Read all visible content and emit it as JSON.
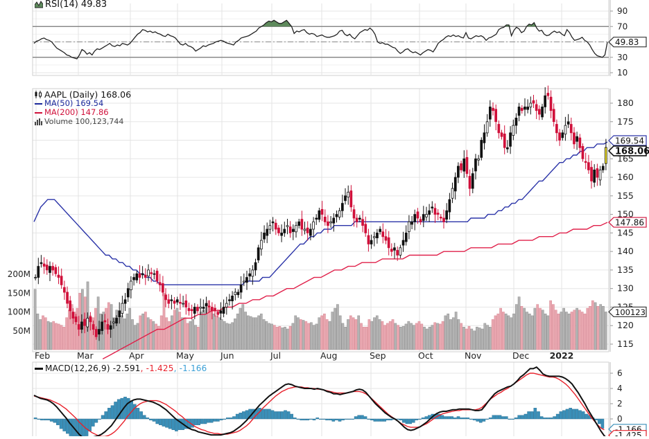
{
  "chart_data": [
    {
      "type": "line",
      "panel": "rsi",
      "title": "RSI(14) 49.83",
      "indicator_label": "RSI(14)",
      "current_value": "49.83",
      "yticks": [
        90,
        70,
        30,
        10
      ],
      "ylim": [
        0,
        100
      ],
      "overbought": 70,
      "oversold": 30,
      "midline": 50,
      "colors": {
        "line": "#222222",
        "overbought_fill": "#5e8a5c",
        "bands": "#666666"
      },
      "values": [
        48,
        51,
        52,
        54,
        55,
        53,
        52,
        50,
        46,
        42,
        40,
        38,
        36,
        33,
        32,
        30,
        29,
        28,
        33,
        40,
        38,
        34,
        36,
        33,
        38,
        41,
        40,
        42,
        44,
        46,
        48,
        45,
        44,
        46,
        45,
        48,
        47,
        46,
        48,
        52,
        56,
        60,
        62,
        66,
        65,
        63,
        64,
        62,
        63,
        61,
        60,
        58,
        57,
        60,
        58,
        57,
        55,
        51,
        47,
        46,
        48,
        45,
        44,
        42,
        38,
        40,
        42,
        45,
        44,
        46,
        47,
        48,
        50,
        51,
        52,
        51,
        49,
        48,
        47,
        46,
        50,
        52,
        55,
        56,
        57,
        58,
        60,
        62,
        64,
        68,
        70,
        72,
        75,
        77,
        76,
        78,
        76,
        74,
        74,
        76,
        78,
        74,
        70,
        61,
        64,
        63,
        65,
        66,
        62,
        60,
        61,
        60,
        57,
        58,
        59,
        57,
        56,
        56,
        57,
        58,
        60,
        64,
        65,
        60,
        58,
        60,
        56,
        54,
        58,
        62,
        64,
        66,
        65,
        68,
        65,
        60,
        50,
        48,
        49,
        47,
        47,
        45,
        43,
        42,
        38,
        35,
        37,
        40,
        41,
        38,
        36,
        37,
        35,
        33,
        36,
        38,
        40,
        39,
        37,
        42,
        48,
        51,
        53,
        56,
        58,
        57,
        59,
        57,
        58,
        56,
        55,
        62,
        55,
        54,
        56,
        58,
        57,
        58,
        56,
        52,
        55,
        56,
        58,
        60,
        66,
        68,
        69,
        72,
        72,
        58,
        65,
        69,
        67,
        62,
        64,
        70,
        73,
        72,
        75,
        68,
        64,
        65,
        60,
        58,
        59,
        62,
        64,
        62,
        63,
        60,
        58,
        66,
        62,
        56,
        52,
        53,
        54,
        56,
        52,
        50,
        46,
        40,
        35,
        32,
        31,
        30,
        33,
        49.83
      ]
    },
    {
      "type": "candlestick",
      "panel": "price",
      "title": "AAPL (Daily) 168.06",
      "symbol": "AAPL",
      "period": "Daily",
      "last_price": "168.06",
      "ylim": [
        113,
        183
      ],
      "yticks": [
        180,
        175,
        170,
        165,
        160,
        155,
        150,
        145,
        140,
        135,
        130,
        125,
        120,
        115
      ],
      "xticks": [
        "Feb",
        "Mar",
        "Apr",
        "May",
        "Jun",
        "Jul",
        "Aug",
        "Sep",
        "Oct",
        "Nov",
        "Dec",
        "2022"
      ],
      "close": [
        133,
        136,
        137,
        136,
        135,
        136,
        135,
        134,
        133,
        131,
        129,
        126,
        124,
        122,
        121,
        119,
        121,
        120,
        122,
        121,
        119,
        117,
        119,
        121,
        121,
        119,
        120,
        121,
        122,
        124,
        126,
        127,
        130,
        132,
        133,
        134,
        133,
        134,
        133,
        135,
        134,
        134,
        132,
        131,
        129,
        127,
        126,
        127,
        126,
        127,
        126,
        126,
        125,
        124,
        124,
        125,
        124,
        125,
        125,
        126,
        125,
        124,
        124,
        123,
        124,
        125,
        126,
        127,
        128,
        129,
        129,
        131,
        132,
        133,
        134,
        135,
        137,
        141,
        143,
        145,
        146,
        147,
        148,
        146,
        145,
        145,
        146,
        147,
        145,
        146,
        147,
        148,
        146,
        146,
        145,
        146,
        148,
        149,
        151,
        150,
        148,
        147,
        148,
        149,
        150,
        151,
        153,
        155,
        156,
        152,
        149,
        148,
        149,
        147,
        145,
        142,
        143,
        144,
        145,
        146,
        144,
        143,
        141,
        140,
        141,
        139,
        141,
        143,
        145,
        148,
        148,
        150,
        149,
        148,
        150,
        150,
        151,
        152,
        150,
        150,
        149,
        148,
        151,
        154,
        157,
        160,
        163,
        162,
        165,
        161,
        157,
        161,
        165,
        165,
        170,
        172,
        175,
        179,
        178,
        175,
        172,
        171,
        168,
        168,
        172,
        174,
        176,
        179,
        178,
        179,
        179,
        180,
        180,
        178,
        177,
        179,
        182,
        182,
        178,
        175,
        172,
        170,
        172,
        174,
        175,
        172,
        169,
        171,
        168,
        165,
        164,
        162,
        159,
        162,
        160,
        162,
        163,
        168.06
      ],
      "ma50": [
        148,
        150,
        152,
        153,
        154,
        154,
        154,
        153,
        152,
        151,
        150,
        149,
        148,
        147,
        146,
        145,
        144,
        143,
        142,
        141,
        140,
        139,
        139,
        138,
        138,
        137,
        137,
        136,
        136,
        135,
        135,
        134,
        134,
        133,
        133,
        132,
        132,
        131,
        131,
        131,
        131,
        131,
        131,
        131,
        131,
        131,
        131,
        131,
        131,
        131,
        131,
        131,
        131,
        131,
        131,
        131,
        131,
        131,
        131,
        131,
        131,
        131,
        132,
        132,
        132,
        132,
        132,
        133,
        133,
        133,
        134,
        135,
        136,
        137,
        138,
        139,
        140,
        141,
        142,
        142,
        143,
        144,
        144,
        145,
        145,
        146,
        146,
        146,
        147,
        147,
        147,
        147,
        147,
        147,
        148,
        148,
        148,
        148,
        148,
        148,
        148,
        148,
        148,
        148,
        148,
        148,
        148,
        148,
        148,
        148,
        148,
        148,
        148,
        148,
        148,
        148,
        148,
        148,
        148,
        148,
        148,
        148,
        148,
        148,
        148,
        148,
        148,
        148,
        149,
        149,
        149,
        149,
        149,
        150,
        150,
        150,
        151,
        151,
        152,
        152,
        153,
        153,
        154,
        154,
        155,
        156,
        157,
        158,
        159,
        159,
        160,
        161,
        162,
        163,
        164,
        164,
        165,
        165,
        166,
        166,
        167,
        167,
        168,
        168,
        168,
        169,
        169,
        169,
        169.54
      ],
      "ma200": [
        111,
        112,
        113,
        114,
        115,
        116,
        117,
        118,
        119,
        119,
        120,
        121,
        122,
        122,
        123,
        123,
        124,
        124,
        125,
        125,
        126,
        126,
        127,
        127,
        128,
        128,
        129,
        130,
        130,
        131,
        132,
        133,
        133,
        134,
        135,
        135,
        136,
        136,
        137,
        137,
        137,
        138,
        138,
        138,
        138,
        139,
        139,
        139,
        139,
        139,
        140,
        140,
        140,
        140,
        141,
        141,
        141,
        141,
        142,
        142,
        142,
        143,
        143,
        143,
        144,
        144,
        144,
        145,
        145,
        146,
        146,
        146,
        147,
        147,
        147.86
      ],
      "volume": [
        160,
        95,
        80,
        90,
        85,
        75,
        72,
        75,
        70,
        68,
        65,
        60,
        85,
        105,
        120,
        100,
        110,
        150,
        160,
        140,
        180,
        90,
        85,
        110,
        140,
        95,
        100,
        110,
        125,
        120,
        85,
        105,
        85,
        90,
        82,
        95,
        110,
        80,
        65,
        70,
        90,
        95,
        100,
        85,
        80,
        75,
        68,
        62,
        90,
        150,
        85,
        75,
        90,
        105,
        110,
        100,
        85,
        85,
        70,
        75,
        80,
        65,
        60,
        100,
        105,
        120,
        130,
        110,
        95,
        90,
        85,
        80,
        75,
        70,
        68,
        72,
        82,
        95,
        110,
        120,
        100,
        90,
        88,
        85,
        85,
        90,
        95,
        80,
        75,
        70,
        68,
        65,
        60,
        62,
        58,
        60,
        55,
        62,
        70,
        90,
        85,
        80,
        78,
        75,
        70,
        72,
        65,
        68,
        85,
        90,
        95,
        80,
        75,
        100,
        110,
        120,
        90,
        70,
        60,
        80,
        90,
        85,
        80,
        90,
        70,
        60,
        60,
        80,
        75,
        85,
        90,
        80,
        75,
        65,
        70,
        75,
        80,
        70,
        65,
        60,
        62,
        68,
        75,
        70,
        65,
        70,
        75,
        68,
        60,
        55,
        60,
        65,
        72,
        70,
        68,
        75,
        90,
        95,
        80,
        85,
        100,
        80,
        70,
        60,
        55,
        62,
        55,
        50,
        60,
        58,
        55,
        70,
        65,
        60,
        80,
        90,
        95,
        110,
        100,
        95,
        90,
        85,
        95,
        120,
        140,
        115,
        110,
        100,
        95,
        90,
        110,
        120,
        110,
        105,
        95,
        90,
        130,
        120,
        105,
        95,
        100,
        110,
        100,
        95,
        100,
        105,
        110,
        105,
        100,
        95,
        110,
        115,
        130,
        125,
        115,
        120,
        115,
        100.123
      ],
      "volume_yticks": [
        "200M",
        "150M",
        "100M",
        "50M"
      ],
      "volume_ylim": [
        0,
        250
      ],
      "colors": {
        "up": "#111111",
        "down": "#d0103a",
        "ma50": "#2a33a8",
        "ma200": "#e0204a",
        "vol_up": "#b3b3b3",
        "vol_down": "#e9a7b0",
        "last_candle_highlight": "#f5e632"
      }
    },
    {
      "type": "line",
      "panel": "macd",
      "title": "MACD(12,26,9) -2.591, -1.425, -1.166",
      "indicator_label": "MACD(12,26,9)",
      "macd_value": "-2.591",
      "signal_value": "-1.425",
      "histogram_value": "-1.166",
      "yticks": [
        6,
        4,
        2,
        0
      ],
      "ylim": [
        -2.4,
        7.2
      ],
      "macd": [
        3.1,
        2.9,
        2.7,
        2.6,
        2.5,
        2.3,
        2.0,
        1.6,
        1.1,
        0.6,
        0.1,
        -0.5,
        -1.0,
        -1.5,
        -2.0,
        -2.4,
        -2.6,
        -2.5,
        -2.4,
        -2.3,
        -2.2,
        -2.0,
        -1.7,
        -1.3,
        -0.9,
        -0.3,
        0.3,
        0.9,
        1.5,
        2.0,
        2.3,
        2.5,
        2.6,
        2.6,
        2.5,
        2.4,
        2.3,
        2.2,
        2.0,
        1.8,
        1.5,
        1.2,
        0.8,
        0.4,
        0.0,
        -0.3,
        -0.6,
        -0.9,
        -1.2,
        -1.4,
        -1.5,
        -1.7,
        -1.8,
        -1.9,
        -2.0,
        -2.1,
        -2.1,
        -2.1,
        -2.1,
        -2.0,
        -1.9,
        -1.8,
        -1.6,
        -1.3,
        -1.0,
        -0.6,
        -0.2,
        0.3,
        0.8,
        1.3,
        1.8,
        2.2,
        2.6,
        3.0,
        3.3,
        3.6,
        3.9,
        4.2,
        4.5,
        4.6,
        4.5,
        4.3,
        4.2,
        4.1,
        4.0,
        4.0,
        4.0,
        3.9,
        4.0,
        3.9,
        3.8,
        3.6,
        3.5,
        3.3,
        3.3,
        3.2,
        3.3,
        3.4,
        3.5,
        3.6,
        3.8,
        3.9,
        3.8,
        3.5,
        3.0,
        2.5,
        2.0,
        1.6,
        1.2,
        0.8,
        0.5,
        0.2,
        0.0,
        -0.3,
        -0.7,
        -1.1,
        -1.4,
        -1.5,
        -1.4,
        -1.2,
        -1.0,
        -0.7,
        -0.4,
        0.0,
        0.4,
        0.7,
        0.9,
        1.0,
        1.0,
        1.1,
        1.2,
        1.2,
        1.3,
        1.3,
        1.3,
        1.3,
        1.2,
        1.1,
        1.1,
        1.2,
        1.7,
        2.3,
        2.8,
        3.3,
        3.6,
        3.8,
        4.0,
        4.2,
        4.3,
        4.6,
        5.0,
        5.5,
        5.8,
        6.2,
        6.6,
        6.6,
        6.8,
        6.4,
        5.9,
        5.7,
        5.6,
        5.6,
        5.6,
        5.6,
        5.5,
        5.3,
        5.0,
        4.6,
        4.0,
        3.4,
        2.7,
        2.0,
        1.2,
        0.5,
        -0.2,
        -0.9,
        -1.6,
        -2.2,
        -2.591
      ],
      "signal": [
        3.0,
        2.9,
        2.8,
        2.7,
        2.6,
        2.5,
        2.3,
        2.1,
        1.9,
        1.6,
        1.3,
        0.9,
        0.5,
        0.1,
        -0.4,
        -0.8,
        -1.2,
        -1.5,
        -1.8,
        -2.0,
        -2.2,
        -2.3,
        -2.3,
        -2.2,
        -2.0,
        -1.7,
        -1.3,
        -0.8,
        -0.3,
        0.3,
        0.8,
        1.3,
        1.7,
        2.0,
        2.2,
        2.3,
        2.4,
        2.4,
        2.4,
        2.3,
        2.1,
        1.9,
        1.6,
        1.3,
        1.0,
        0.6,
        0.3,
        -0.1,
        -0.4,
        -0.7,
        -1.0,
        -1.2,
        -1.4,
        -1.5,
        -1.7,
        -1.8,
        -1.9,
        -1.9,
        -2.0,
        -2.0,
        -2.0,
        -1.9,
        -1.8,
        -1.7,
        -1.5,
        -1.2,
        -0.9,
        -0.5,
        0.0,
        0.5,
        0.9,
        1.4,
        1.8,
        2.2,
        2.6,
        3.0,
        3.3,
        3.6,
        3.8,
        4.0,
        4.1,
        4.2,
        4.2,
        4.2,
        4.1,
        4.1,
        4.0,
        4.0,
        3.9,
        3.9,
        3.8,
        3.7,
        3.6,
        3.5,
        3.4,
        3.4,
        3.4,
        3.4,
        3.5,
        3.6,
        3.6,
        3.6,
        3.5,
        3.3,
        3.0,
        2.6,
        2.2,
        1.8,
        1.4,
        1.0,
        0.6,
        0.3,
        0.0,
        -0.3,
        -0.6,
        -0.8,
        -1.0,
        -1.1,
        -1.1,
        -1.1,
        -1.0,
        -0.8,
        -0.6,
        -0.3,
        0.0,
        0.3,
        0.5,
        0.7,
        0.8,
        0.9,
        1.0,
        1.1,
        1.1,
        1.2,
        1.2,
        1.2,
        1.2,
        1.2,
        1.3,
        1.5,
        1.9,
        2.3,
        2.7,
        3.0,
        3.3,
        3.5,
        3.8,
        4.0,
        4.3,
        4.6,
        4.9,
        5.2,
        5.5,
        5.8,
        6.0,
        6.0,
        5.9,
        5.8,
        5.7,
        5.6,
        5.5,
        5.5,
        5.4,
        5.2,
        4.9,
        4.6,
        4.2,
        3.7,
        3.2,
        2.6,
        2.0,
        1.4,
        0.8,
        0.2,
        -0.3,
        -0.8,
        -1.2,
        -1.425
      ],
      "colors": {
        "macd": "#111111",
        "signal": "#e8202a",
        "histogram": "#3a8fb8"
      }
    }
  ],
  "legend": {
    "rsi": {
      "label": "RSI(14) 49.83",
      "icon": "rsi-area-icon"
    },
    "price": {
      "main": "AAPL (Daily) 168.06",
      "ma50": "MA(50) 169.54",
      "ma200": "MA(200) 147.86",
      "volume": "Volume 100,123,744",
      "price_icon": "candlestick-icon",
      "volume_icon": "volume-bars-icon"
    },
    "macd": {
      "main": "MACD(12,26,9) -2.591",
      "sep1": ", ",
      "signal": "-1.425",
      "sep2": ", ",
      "hist": "-1.166"
    }
  },
  "axis_badges": {
    "rsi": "49.83",
    "price": "168.06",
    "ma50": "169.54",
    "ma200": "147.86",
    "volume": "100123",
    "macd_signal": "-1.425",
    "macd_hist": "-1.166"
  }
}
